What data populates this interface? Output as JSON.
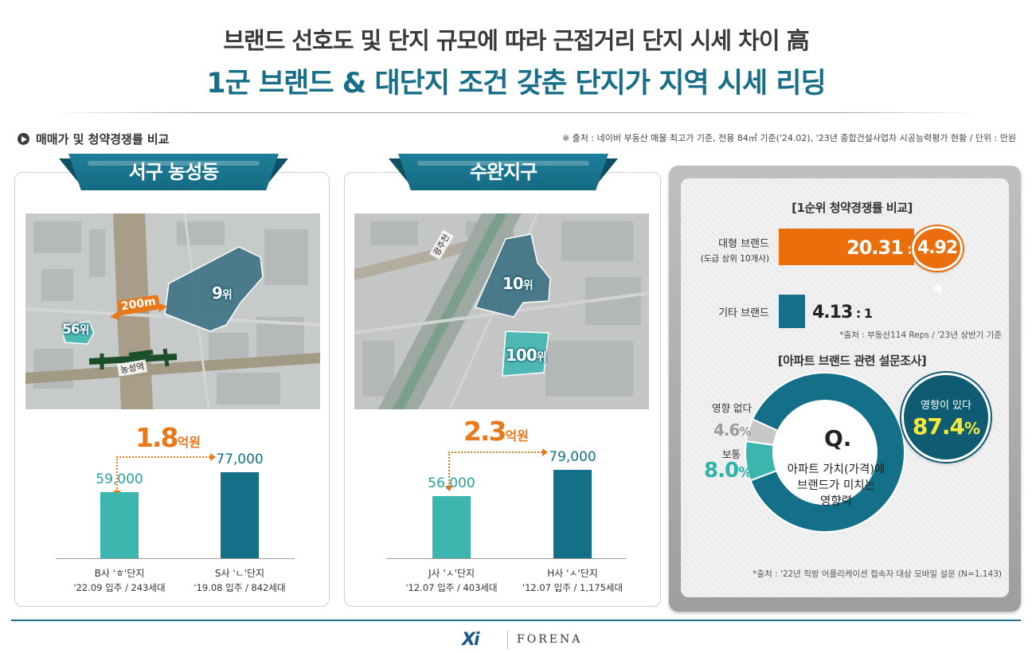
{
  "header": {
    "title_line1": "브랜드 선호도 및 단지 규모에 따라 근접거리 단지 시세 차이 高",
    "title_line2": "1군 브랜드 & 대단지 조건 갖춘 단지가 지역 시세 리딩"
  },
  "section": {
    "label": "매매가 및 청약경쟁률 비교",
    "source": "※ 출처 : 네이버 부동산 매물 최고가 기준, 전용 84㎡ 기준('24.02), '23년 종합건설사업자 시공능력평가 현황 / 단위 : 만원"
  },
  "panel_left": {
    "ribbon": "서구 농성동",
    "map": {
      "rank_a": "9",
      "rank_b": "56",
      "rank_suffix": "위",
      "distance": "200m",
      "station": "농성역"
    },
    "diff": {
      "value": "1.8",
      "unit": "억원"
    },
    "bars": [
      {
        "value": 59000,
        "value_label": "59,000",
        "name": "B사 'ㅎ'단지",
        "sub": "'22.09 입주 / 243세대",
        "color": "#3bb5ae"
      },
      {
        "value": 77000,
        "value_label": "77,000",
        "name": "S사 'ㄴ'단지",
        "sub": "'19.08 입주 / 842세대",
        "color": "#146f88"
      }
    ]
  },
  "panel_mid": {
    "ribbon": "수완지구",
    "map": {
      "rank_a": "10",
      "rank_b": "100",
      "rank_suffix": "위",
      "river": "광주천"
    },
    "diff": {
      "value": "2.3",
      "unit": "억원"
    },
    "bars": [
      {
        "value": 56000,
        "value_label": "56,000",
        "name": "J사 'ㅅ'단지",
        "sub": "'12.07 입주 / 403세대",
        "color": "#3bb5ae"
      },
      {
        "value": 79000,
        "value_label": "79,000",
        "name": "H사 'ㅅ'단지",
        "sub": "'12.07 입주 / 1,175세대",
        "color": "#146f88"
      }
    ]
  },
  "panel_right": {
    "heading1": "[1순위 청약경쟁률 비교]",
    "row1_label": "대형 브랜드",
    "row1_sub": "(도급 상위 10개사)",
    "row1_value": "20.31",
    "row1_ratio": " : 1",
    "badge_value": "4.92",
    "badge_unit": "배",
    "row2_label": "기타 브랜드",
    "row2_value": "4.13",
    "row2_ratio": " : 1",
    "source1": "*출처 : 부동산114 Reps / '23년 상반기 기준",
    "heading2": "[아파트 브랜드 관련 설문조사]",
    "survey": {
      "q": "Q.",
      "q_text_1": "아파트 가치(가격)에",
      "q_text_2": "브랜드가 미치는",
      "q_text_3": "영향력",
      "yes_label": "영향이 있다",
      "yes_pct": "87.4",
      "normal_label": "보통",
      "normal_pct": "8.0",
      "none_label": "영향 없다",
      "none_pct": "4.6",
      "pct_sign": "%"
    },
    "source2": "*출처 : '22년 직방 어플리케이션 접속자 대상 모바일 설문 (N=1,143)"
  },
  "chart_data": [
    {
      "type": "bar",
      "categories": [
        "B사 'ㅎ'단지",
        "S사 'ㄴ'단지"
      ],
      "values": [
        59000,
        77000
      ],
      "title": "서구 농성동",
      "ylabel": ""
    },
    {
      "type": "bar",
      "categories": [
        "J사 'ㅅ'단지",
        "H사 'ㅅ'단지"
      ],
      "values": [
        56000,
        79000
      ],
      "title": "수완지구",
      "ylabel": ""
    },
    {
      "type": "bar",
      "categories": [
        "대형 브랜드",
        "기타 브랜드"
      ],
      "values": [
        20.31,
        4.13
      ],
      "title": "[1순위 청약경쟁률 비교]"
    },
    {
      "type": "pie",
      "categories": [
        "영향이 있다",
        "보통",
        "영향 없다"
      ],
      "values": [
        87.4,
        8.0,
        4.6
      ],
      "colors": [
        "#146f88",
        "#3bb5ae",
        "#c8c8c8"
      ],
      "title": "[아파트 브랜드 관련 설문조사]"
    }
  ],
  "footer": {
    "logo_mark": "Xi",
    "logo_text": "FORENA"
  }
}
